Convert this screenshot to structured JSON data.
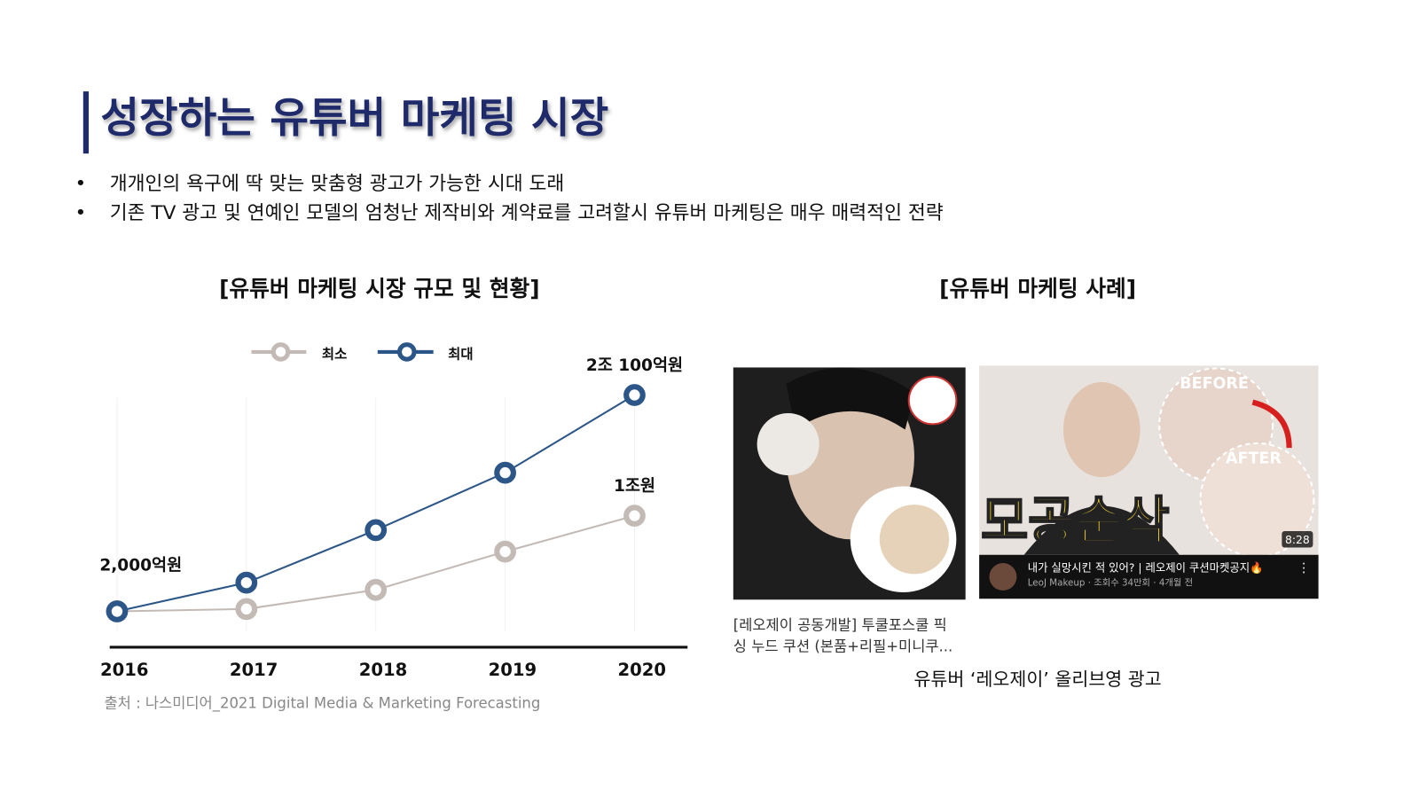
{
  "header": {
    "title": "성장하는 유튜버 마케팅 시장",
    "bullets": [
      "개개인의 욕구에 딱 맞는 맞춤형 광고가 가능한 시대 도래",
      "기존 TV 광고 및 연예인 모델의 엄청난 제작비와 계약료를 고려할시 유튜버 마케팅은 매우 매력적인 전략"
    ]
  },
  "chart_data": {
    "type": "line",
    "title": "[유튜버 마케팅 시장 규모 및 현황]",
    "categories": [
      "2016",
      "2017",
      "2018",
      "2019",
      "2020"
    ],
    "series": [
      {
        "name": "최소",
        "color": "#c3bab6",
        "values": [
          2000,
          2200,
          3800,
          7000,
          10000
        ],
        "value_labels": [
          null,
          null,
          null,
          null,
          "1조원"
        ]
      },
      {
        "name": "최대",
        "color": "#2b5687",
        "values": [
          2000,
          4400,
          8800,
          13600,
          20100
        ],
        "value_labels": [
          "2,000억원",
          null,
          null,
          null,
          "2조 100억원"
        ]
      }
    ],
    "ylim": [
      0,
      25000
    ],
    "legend": "top",
    "source": "출처 : 나스미디어_2021 Digital Media & Marketing Forecasting"
  },
  "case": {
    "title": "[유튜버 마케팅 사례]",
    "left_caption": [
      "[레오제이 공동개발] 투쿨포스쿨 픽",
      "싱 누드 쿠션 (본품+리필+미니쿠..."
    ],
    "right_overlay": {
      "before": "BEFORE",
      "after": "AFTER",
      "headline": "모공순삭",
      "duration": "8:28",
      "video_title": "내가 실망시킨 적 있어? | 레오제이 쿠션마켓공지🔥",
      "channel": "LeoJ Makeup · 조회수 34만회 · 4개월 전"
    },
    "caption": "유튜버 ‘레오제이’ 올리브영 광고"
  }
}
